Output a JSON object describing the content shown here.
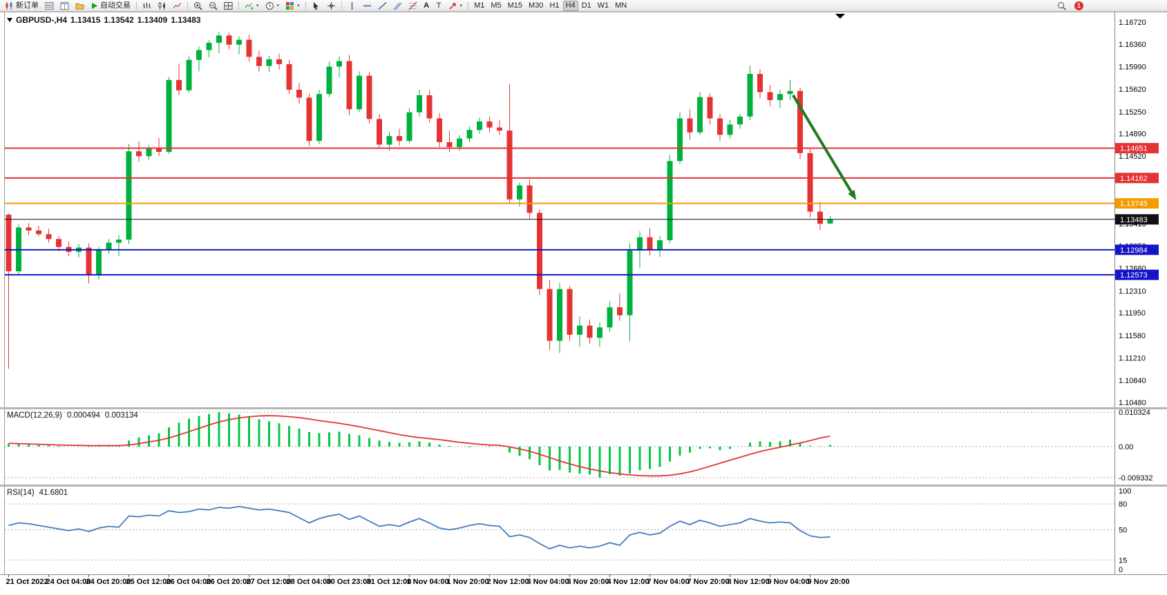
{
  "toolbar": {
    "new_order": "新订单",
    "auto_trading": "自动交易",
    "text_tool": "A",
    "label_tool": "T",
    "timeframes": [
      "M1",
      "M5",
      "M15",
      "M30",
      "H1",
      "H4",
      "D1",
      "W1",
      "MN"
    ],
    "active_timeframe": "H4",
    "notification_count": "1"
  },
  "symbol": {
    "label": "GBPUSD-,H4",
    "open": "1.13415",
    "high": "1.13542",
    "low": "1.13409",
    "close": "1.13483"
  },
  "indicators": {
    "macd": {
      "name": "MACD(12,26,9)",
      "main_value": "0.000494",
      "signal_value": "0.003134"
    },
    "rsi": {
      "name": "RSI(14)",
      "value": "41.6801"
    }
  },
  "chart_data": {
    "type": "candlestick",
    "symbol": "GBPUSD-",
    "timeframe": "H4",
    "y_range": [
      1.104,
      1.1689
    ],
    "price_gridlines": [
      1.1672,
      1.1636,
      1.1599,
      1.1562,
      1.1525,
      1.1489,
      1.1452,
      1.1415,
      1.1378,
      1.1341,
      1.1305,
      1.1268,
      1.1231,
      1.1195,
      1.1158,
      1.1121,
      1.1084,
      1.1048
    ],
    "colors": {
      "up": "#00b140",
      "down": "#e43333"
    },
    "candles": [
      [
        1.1356,
        1.1358,
        1.1103,
        1.1263
      ],
      [
        1.1263,
        1.134,
        1.1258,
        1.1335
      ],
      [
        1.1335,
        1.1342,
        1.1322,
        1.133
      ],
      [
        1.133,
        1.1338,
        1.132,
        1.1324
      ],
      [
        1.1324,
        1.1333,
        1.131,
        1.1316
      ],
      [
        1.1316,
        1.1321,
        1.1296,
        1.1303
      ],
      [
        1.1303,
        1.1312,
        1.1288,
        1.1295
      ],
      [
        1.1295,
        1.1308,
        1.1286,
        1.1302
      ],
      [
        1.1302,
        1.1309,
        1.1243,
        1.1257
      ],
      [
        1.1257,
        1.1303,
        1.125,
        1.1298
      ],
      [
        1.1298,
        1.1316,
        1.1292,
        1.131
      ],
      [
        1.131,
        1.1322,
        1.1288,
        1.1315
      ],
      [
        1.1315,
        1.1472,
        1.1308,
        1.146
      ],
      [
        1.146,
        1.1476,
        1.1443,
        1.1452
      ],
      [
        1.1452,
        1.147,
        1.1446,
        1.1465
      ],
      [
        1.1465,
        1.1482,
        1.1452,
        1.1459
      ],
      [
        1.1459,
        1.1582,
        1.1456,
        1.1577
      ],
      [
        1.1577,
        1.1604,
        1.1552,
        1.156
      ],
      [
        1.156,
        1.1616,
        1.1556,
        1.161
      ],
      [
        1.161,
        1.1632,
        1.1591,
        1.1626
      ],
      [
        1.1626,
        1.1643,
        1.1614,
        1.1638
      ],
      [
        1.1638,
        1.1656,
        1.1621,
        1.165
      ],
      [
        1.165,
        1.1655,
        1.1627,
        1.1635
      ],
      [
        1.1635,
        1.1649,
        1.1619,
        1.1643
      ],
      [
        1.1643,
        1.1651,
        1.1607,
        1.1615
      ],
      [
        1.1615,
        1.1625,
        1.1591,
        1.16
      ],
      [
        1.16,
        1.1617,
        1.159,
        1.1611
      ],
      [
        1.1611,
        1.162,
        1.1594,
        1.1603
      ],
      [
        1.1603,
        1.161,
        1.1554,
        1.1561
      ],
      [
        1.1561,
        1.1572,
        1.1538,
        1.1548
      ],
      [
        1.1548,
        1.1555,
        1.1469,
        1.1477
      ],
      [
        1.1477,
        1.1561,
        1.1472,
        1.1554
      ],
      [
        1.1554,
        1.1607,
        1.1549,
        1.1599
      ],
      [
        1.1599,
        1.1616,
        1.1581,
        1.1608
      ],
      [
        1.1608,
        1.1618,
        1.1519,
        1.1529
      ],
      [
        1.1529,
        1.1591,
        1.1524,
        1.1584
      ],
      [
        1.1584,
        1.159,
        1.1506,
        1.1513
      ],
      [
        1.1513,
        1.1521,
        1.1464,
        1.1471
      ],
      [
        1.1471,
        1.1492,
        1.1461,
        1.1485
      ],
      [
        1.1485,
        1.1497,
        1.1469,
        1.1477
      ],
      [
        1.1477,
        1.1531,
        1.1473,
        1.1524
      ],
      [
        1.1524,
        1.1561,
        1.1517,
        1.1552
      ],
      [
        1.1552,
        1.156,
        1.1507,
        1.1514
      ],
      [
        1.1514,
        1.1523,
        1.1467,
        1.1475
      ],
      [
        1.1475,
        1.1494,
        1.1459,
        1.1467
      ],
      [
        1.1467,
        1.1487,
        1.1461,
        1.1481
      ],
      [
        1.1481,
        1.1501,
        1.1475,
        1.1495
      ],
      [
        1.1495,
        1.1515,
        1.1489,
        1.1509
      ],
      [
        1.1509,
        1.1517,
        1.1491,
        1.1499
      ],
      [
        1.1499,
        1.1511,
        1.1487,
        1.1494
      ],
      [
        1.1494,
        1.157,
        1.1374,
        1.1381
      ],
      [
        1.1381,
        1.1409,
        1.1369,
        1.1404
      ],
      [
        1.1404,
        1.1414,
        1.1349,
        1.1359
      ],
      [
        1.1359,
        1.1364,
        1.1224,
        1.1234
      ],
      [
        1.1234,
        1.1249,
        1.1134,
        1.1149
      ],
      [
        1.1149,
        1.1244,
        1.1129,
        1.1234
      ],
      [
        1.1234,
        1.1239,
        1.1149,
        1.1159
      ],
      [
        1.1159,
        1.1189,
        1.1139,
        1.1174
      ],
      [
        1.1174,
        1.1184,
        1.1144,
        1.1154
      ],
      [
        1.1154,
        1.1179,
        1.1139,
        1.1171
      ],
      [
        1.1171,
        1.1214,
        1.1164,
        1.1204
      ],
      [
        1.1204,
        1.1227,
        1.1182,
        1.1191
      ],
      [
        1.1191,
        1.1309,
        1.1149,
        1.1297
      ],
      [
        1.1297,
        1.1329,
        1.1269,
        1.1319
      ],
      [
        1.1319,
        1.1334,
        1.1289,
        1.1299
      ],
      [
        1.1299,
        1.1321,
        1.1287,
        1.1314
      ],
      [
        1.1314,
        1.1454,
        1.1309,
        1.1444
      ],
      [
        1.1444,
        1.1524,
        1.1439,
        1.1514
      ],
      [
        1.1514,
        1.1529,
        1.1479,
        1.1491
      ],
      [
        1.1491,
        1.1557,
        1.1487,
        1.1549
      ],
      [
        1.1549,
        1.1555,
        1.1504,
        1.1514
      ],
      [
        1.1514,
        1.1521,
        1.1477,
        1.1487
      ],
      [
        1.1487,
        1.1511,
        1.1481,
        1.1504
      ],
      [
        1.1504,
        1.1521,
        1.1497,
        1.1517
      ],
      [
        1.1517,
        1.1601,
        1.1511,
        1.1587
      ],
      [
        1.1587,
        1.1595,
        1.1547,
        1.1557
      ],
      [
        1.1557,
        1.1569,
        1.1534,
        1.1544
      ],
      [
        1.1544,
        1.1561,
        1.1531,
        1.1554
      ],
      [
        1.1554,
        1.1577,
        1.1544,
        1.1559
      ],
      [
        1.1559,
        1.1564,
        1.1447,
        1.1457
      ],
      [
        1.1457,
        1.1464,
        1.1351,
        1.1361
      ],
      [
        1.1361,
        1.1377,
        1.1331,
        1.1341
      ],
      [
        1.13415,
        1.13542,
        1.13409,
        1.13483
      ]
    ],
    "hlines": [
      {
        "price": 1.14651,
        "text": "1.14651",
        "color": "#e43333",
        "width": 2
      },
      {
        "price": 1.14162,
        "text": "1.14162",
        "color": "#e43333",
        "width": 2
      },
      {
        "price": 1.13745,
        "text": "1.13745",
        "color": "#f59b00",
        "width": 2
      },
      {
        "price": 1.13483,
        "text": "1.13483",
        "color": "#111111",
        "width": 1,
        "current": true
      },
      {
        "price": 1.12984,
        "text": "1.12984",
        "color": "#1515c8",
        "width": 2
      },
      {
        "price": 1.12573,
        "text": "1.12573",
        "color": "#1515c8",
        "width": 2
      }
    ],
    "time_labels": [
      {
        "i": 0,
        "text": "21 Oct 2022"
      },
      {
        "i": 4,
        "text": "24 Oct 04:00"
      },
      {
        "i": 8,
        "text": "24 Oct 20:00"
      },
      {
        "i": 12,
        "text": "25 Oct 12:00"
      },
      {
        "i": 16,
        "text": "26 Oct 04:00"
      },
      {
        "i": 20,
        "text": "26 Oct 20:00"
      },
      {
        "i": 24,
        "text": "27 Oct 12:00"
      },
      {
        "i": 28,
        "text": "28 Oct 04:00"
      },
      {
        "i": 32,
        "text": "30 Oct 23:00"
      },
      {
        "i": 36,
        "text": "31 Oct 12:00"
      },
      {
        "i": 40,
        "text": "1 Nov 04:00"
      },
      {
        "i": 44,
        "text": "1 Nov 20:00"
      },
      {
        "i": 48,
        "text": "2 Nov 12:00"
      },
      {
        "i": 52,
        "text": "3 Nov 04:00"
      },
      {
        "i": 56,
        "text": "3 Nov 20:00"
      },
      {
        "i": 60,
        "text": "4 Nov 12:00"
      },
      {
        "i": 64,
        "text": "7 Nov 04:00"
      },
      {
        "i": 68,
        "text": "7 Nov 20:00"
      },
      {
        "i": 72,
        "text": "8 Nov 12:00"
      },
      {
        "i": 76,
        "text": "9 Nov 04:00"
      },
      {
        "i": 80,
        "text": "9 Nov 20:00"
      }
    ],
    "macd": {
      "y_range": [
        -0.0114,
        0.0112
      ],
      "histogram_color": "#00c843",
      "signal_color": "#e43333",
      "grid": [
        {
          "text": "0.010324",
          "value": 0.010324
        },
        {
          "text": "0.00",
          "value": 0
        },
        {
          "text": "-0.009332",
          "value": -0.009332
        }
      ],
      "histogram": [
        0.0008,
        0.0007,
        0.0006,
        0.0005,
        0.0003,
        0.0002,
        0.0,
        0.0001,
        -0.0001,
        0.0001,
        0.0003,
        0.0003,
        0.0018,
        0.0028,
        0.0034,
        0.004,
        0.0058,
        0.0072,
        0.0084,
        0.0092,
        0.0098,
        0.010324,
        0.01,
        0.0096,
        0.009,
        0.0082,
        0.0076,
        0.007,
        0.0062,
        0.0054,
        0.0044,
        0.0041,
        0.0043,
        0.0045,
        0.0038,
        0.0034,
        0.0026,
        0.0018,
        0.0014,
        0.0011,
        0.0013,
        0.0016,
        0.0012,
        0.0006,
        0.0002,
        0.0,
        -0.0002,
        0.0,
        0.0002,
        0.0001,
        -0.0018,
        -0.0028,
        -0.0038,
        -0.0056,
        -0.0072,
        -0.007,
        -0.0078,
        -0.0081,
        -0.0084,
        -0.009332,
        -0.0083,
        -0.0087,
        -0.0081,
        -0.0071,
        -0.0067,
        -0.0061,
        -0.0045,
        -0.0027,
        -0.0018,
        -0.0007,
        -0.0005,
        -0.0011,
        -0.0007,
        0.0,
        0.0012,
        0.0016,
        0.0014,
        0.0016,
        0.0021,
        0.0011,
        0.0003,
        -0.0001,
        0.000494
      ],
      "signal": [
        0.001,
        0.0009,
        0.0008,
        0.0007,
        0.0006,
        0.0005,
        0.0004,
        0.0004,
        0.0003,
        0.0003,
        0.0003,
        0.0003,
        0.0005,
        0.0009,
        0.0014,
        0.0019,
        0.0026,
        0.0035,
        0.0045,
        0.0055,
        0.0065,
        0.0074,
        0.0081,
        0.0086,
        0.009,
        0.0092,
        0.0093,
        0.0092,
        0.009,
        0.0087,
        0.0083,
        0.0078,
        0.0074,
        0.007,
        0.0065,
        0.006,
        0.0054,
        0.0048,
        0.0042,
        0.0036,
        0.0031,
        0.0027,
        0.0024,
        0.0021,
        0.0017,
        0.0013,
        0.001,
        0.0007,
        0.0005,
        0.0004,
        -0.0001,
        -0.0007,
        -0.0014,
        -0.0023,
        -0.0033,
        -0.0043,
        -0.0052,
        -0.006,
        -0.0067,
        -0.0073,
        -0.0078,
        -0.0082,
        -0.0085,
        -0.0087,
        -0.0088,
        -0.0088,
        -0.0086,
        -0.0082,
        -0.0076,
        -0.0068,
        -0.0059,
        -0.005,
        -0.0041,
        -0.0032,
        -0.0023,
        -0.0015,
        -0.0008,
        -0.0002,
        0.0005,
        0.0011,
        0.0018,
        0.0026,
        0.003134
      ]
    },
    "rsi": {
      "color": "#3e7bbe",
      "levels": [
        80,
        50,
        15
      ],
      "scale": [
        {
          "text": "100",
          "value": 100
        },
        {
          "text": "80",
          "value": 80
        },
        {
          "text": "50",
          "value": 50
        },
        {
          "text": "15",
          "value": 15
        },
        {
          "text": "0",
          "value": 0
        }
      ],
      "values": [
        55,
        58,
        57,
        55,
        53,
        51,
        49,
        51,
        48,
        52,
        54,
        53,
        66,
        65,
        67,
        66,
        72,
        70,
        71,
        74,
        73,
        76,
        75,
        77,
        75,
        73,
        74,
        72,
        70,
        64,
        58,
        63,
        66,
        68,
        62,
        66,
        60,
        54,
        56,
        54,
        59,
        63,
        58,
        52,
        50,
        52,
        55,
        57,
        55,
        54,
        42,
        44,
        41,
        34,
        28,
        32,
        29,
        31,
        29,
        31,
        35,
        32,
        44,
        47,
        44,
        46,
        54,
        60,
        56,
        61,
        58,
        54,
        56,
        58,
        63,
        60,
        58,
        59,
        58,
        49,
        43,
        41,
        41.68
      ]
    },
    "arrow": {
      "i1": 78.3,
      "p1": 1.1552,
      "i2": 84.6,
      "p2": 1.138,
      "color": "#1e7a1e"
    }
  }
}
